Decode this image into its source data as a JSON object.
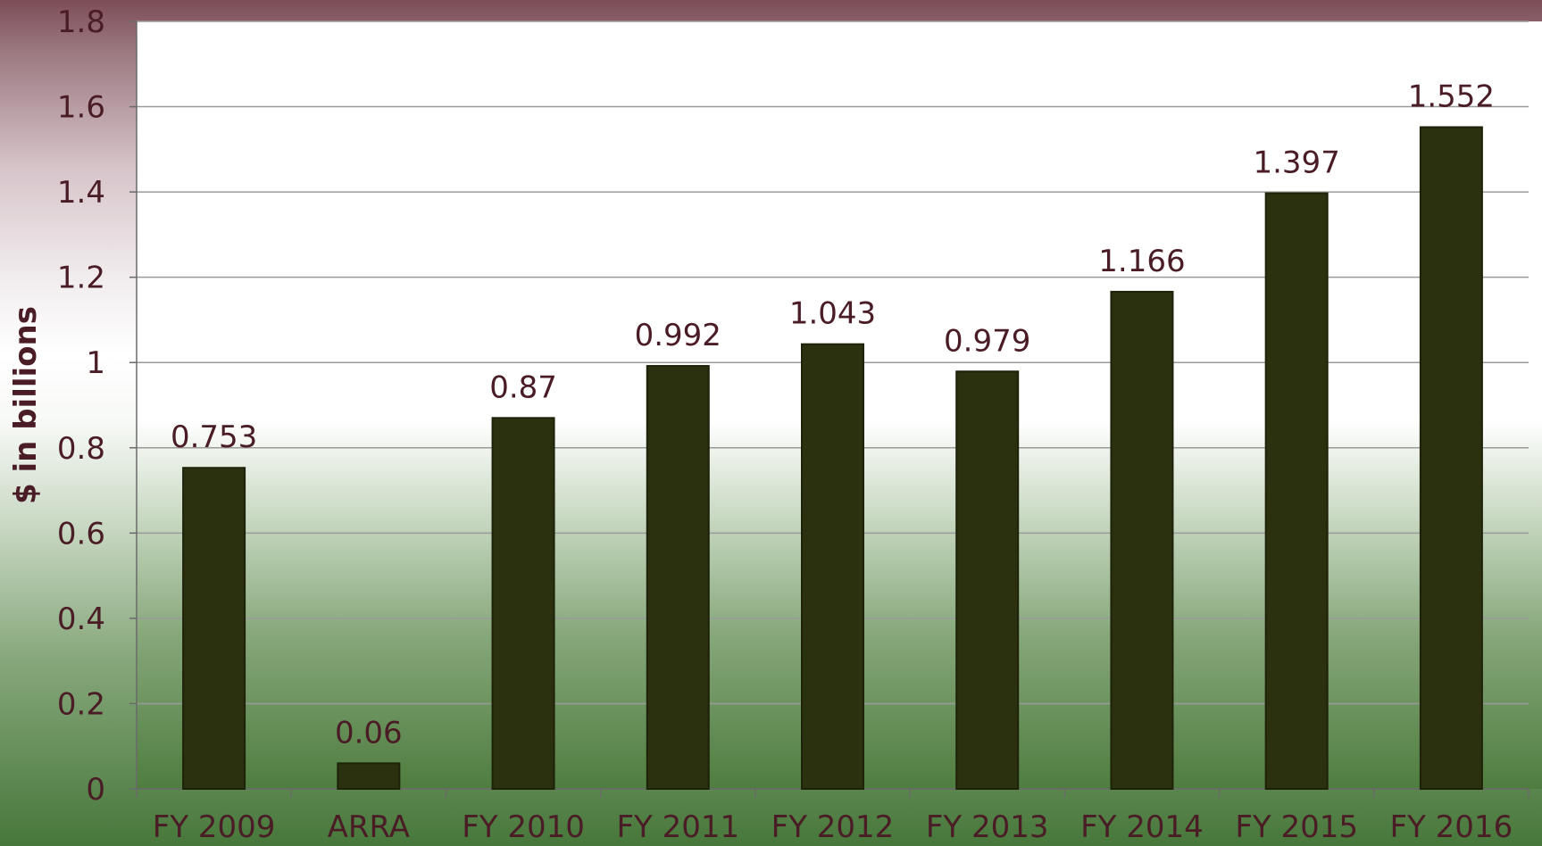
{
  "chart_data": {
    "type": "bar",
    "title": "",
    "xlabel": "",
    "ylabel": "$ in billions",
    "categories": [
      "FY 2009",
      "ARRA",
      "FY 2010",
      "FY 2011",
      "FY 2012",
      "FY 2013",
      "FY 2014",
      "FY 2015",
      "FY 2016"
    ],
    "values": [
      0.753,
      0.06,
      0.87,
      0.992,
      1.043,
      0.979,
      1.166,
      1.397,
      1.552
    ],
    "value_labels": [
      "0.753",
      "0.06",
      "0.87",
      "0.992",
      "1.043",
      "0.979",
      "1.166",
      "1.397",
      "1.552"
    ],
    "ylim": [
      0,
      1.8
    ],
    "yticks": [
      0,
      0.2,
      0.4,
      0.6,
      0.8,
      1,
      1.2,
      1.4,
      1.6,
      1.8
    ],
    "ytick_labels": [
      "0",
      "0.2",
      "0.4",
      "0.6",
      "0.8",
      "1",
      "1.2",
      "1.4",
      "1.6",
      "1.8"
    ],
    "grid": true,
    "legend": "none",
    "colors": {
      "bar_fill": "#2b300f",
      "bar_edge": "#1e2209",
      "text": "#4a1c26",
      "gridline": "#9a9a9a",
      "top_band": "#7d4d57",
      "bottom_band": "#4e7d3e"
    }
  }
}
